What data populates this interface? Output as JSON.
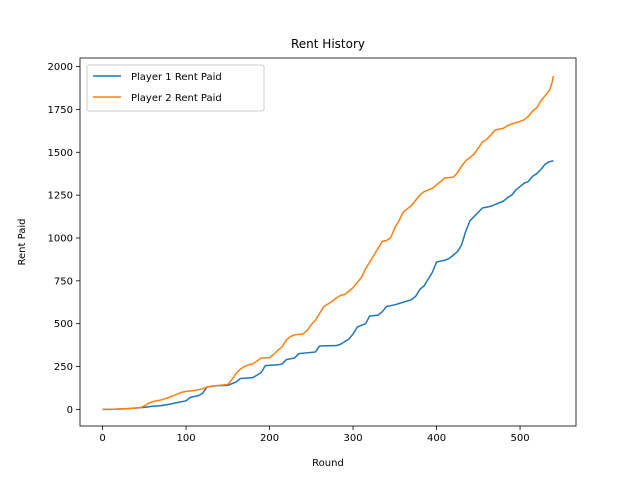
{
  "chart_data": {
    "type": "line",
    "title": "Rent History",
    "xlabel": "Round",
    "ylabel": "Rent Paid",
    "xlim": [
      -27,
      567
    ],
    "ylim": [
      -97,
      2050
    ],
    "xticks": [
      0,
      100,
      200,
      300,
      400,
      500
    ],
    "yticks": [
      0,
      250,
      500,
      750,
      1000,
      1250,
      1500,
      1750,
      2000
    ],
    "grid": false,
    "legend_position": "top-left",
    "series": [
      {
        "name": "Player 1 Rent Paid",
        "color": "#1f77b4",
        "points": [
          [
            0,
            0
          ],
          [
            10,
            0
          ],
          [
            20,
            2
          ],
          [
            30,
            4
          ],
          [
            40,
            8
          ],
          [
            50,
            12
          ],
          [
            60,
            18
          ],
          [
            70,
            22
          ],
          [
            80,
            30
          ],
          [
            90,
            40
          ],
          [
            100,
            50
          ],
          [
            105,
            70
          ],
          [
            115,
            80
          ],
          [
            120,
            95
          ],
          [
            125,
            130
          ],
          [
            135,
            138
          ],
          [
            150,
            140
          ],
          [
            160,
            160
          ],
          [
            165,
            180
          ],
          [
            180,
            185
          ],
          [
            190,
            215
          ],
          [
            195,
            255
          ],
          [
            210,
            260
          ],
          [
            215,
            265
          ],
          [
            220,
            290
          ],
          [
            230,
            300
          ],
          [
            235,
            325
          ],
          [
            245,
            330
          ],
          [
            255,
            335
          ],
          [
            260,
            370
          ],
          [
            275,
            372
          ],
          [
            280,
            372
          ],
          [
            285,
            380
          ],
          [
            290,
            395
          ],
          [
            295,
            410
          ],
          [
            300,
            440
          ],
          [
            305,
            480
          ],
          [
            315,
            500
          ],
          [
            320,
            545
          ],
          [
            330,
            550
          ],
          [
            335,
            570
          ],
          [
            340,
            600
          ],
          [
            350,
            610
          ],
          [
            360,
            625
          ],
          [
            370,
            640
          ],
          [
            375,
            660
          ],
          [
            380,
            700
          ],
          [
            385,
            720
          ],
          [
            390,
            760
          ],
          [
            395,
            800
          ],
          [
            400,
            860
          ],
          [
            410,
            870
          ],
          [
            415,
            880
          ],
          [
            420,
            900
          ],
          [
            425,
            920
          ],
          [
            430,
            960
          ],
          [
            435,
            1040
          ],
          [
            440,
            1100
          ],
          [
            450,
            1150
          ],
          [
            455,
            1175
          ],
          [
            465,
            1185
          ],
          [
            470,
            1195
          ],
          [
            480,
            1215
          ],
          [
            485,
            1235
          ],
          [
            490,
            1250
          ],
          [
            495,
            1280
          ],
          [
            500,
            1300
          ],
          [
            505,
            1320
          ],
          [
            510,
            1330
          ],
          [
            515,
            1360
          ],
          [
            520,
            1375
          ],
          [
            525,
            1400
          ],
          [
            530,
            1430
          ],
          [
            535,
            1445
          ],
          [
            540,
            1450
          ]
        ]
      },
      {
        "name": "Player 2 Rent Paid",
        "color": "#ff7f0e",
        "points": [
          [
            0,
            0
          ],
          [
            10,
            0
          ],
          [
            20,
            2
          ],
          [
            30,
            5
          ],
          [
            40,
            8
          ],
          [
            45,
            10
          ],
          [
            50,
            20
          ],
          [
            55,
            35
          ],
          [
            60,
            45
          ],
          [
            70,
            55
          ],
          [
            80,
            70
          ],
          [
            90,
            90
          ],
          [
            95,
            100
          ],
          [
            100,
            105
          ],
          [
            110,
            110
          ],
          [
            120,
            120
          ],
          [
            125,
            130
          ],
          [
            130,
            135
          ],
          [
            140,
            140
          ],
          [
            150,
            145
          ],
          [
            155,
            175
          ],
          [
            160,
            210
          ],
          [
            165,
            235
          ],
          [
            170,
            250
          ],
          [
            175,
            260
          ],
          [
            180,
            265
          ],
          [
            190,
            300
          ],
          [
            200,
            302
          ],
          [
            205,
            320
          ],
          [
            210,
            345
          ],
          [
            215,
            365
          ],
          [
            220,
            405
          ],
          [
            225,
            425
          ],
          [
            230,
            435
          ],
          [
            240,
            440
          ],
          [
            245,
            460
          ],
          [
            250,
            495
          ],
          [
            255,
            520
          ],
          [
            260,
            560
          ],
          [
            265,
            600
          ],
          [
            270,
            615
          ],
          [
            275,
            630
          ],
          [
            280,
            650
          ],
          [
            285,
            665
          ],
          [
            290,
            670
          ],
          [
            295,
            690
          ],
          [
            300,
            710
          ],
          [
            305,
            740
          ],
          [
            310,
            770
          ],
          [
            315,
            820
          ],
          [
            320,
            860
          ],
          [
            325,
            900
          ],
          [
            330,
            940
          ],
          [
            335,
            980
          ],
          [
            340,
            985
          ],
          [
            345,
            1000
          ],
          [
            350,
            1060
          ],
          [
            355,
            1100
          ],
          [
            360,
            1150
          ],
          [
            365,
            1170
          ],
          [
            370,
            1190
          ],
          [
            375,
            1220
          ],
          [
            380,
            1250
          ],
          [
            385,
            1270
          ],
          [
            390,
            1280
          ],
          [
            395,
            1290
          ],
          [
            400,
            1310
          ],
          [
            405,
            1330
          ],
          [
            410,
            1350
          ],
          [
            420,
            1355
          ],
          [
            425,
            1380
          ],
          [
            430,
            1420
          ],
          [
            435,
            1450
          ],
          [
            440,
            1470
          ],
          [
            445,
            1490
          ],
          [
            450,
            1525
          ],
          [
            455,
            1560
          ],
          [
            460,
            1575
          ],
          [
            465,
            1600
          ],
          [
            470,
            1630
          ],
          [
            480,
            1640
          ],
          [
            485,
            1655
          ],
          [
            490,
            1665
          ],
          [
            500,
            1680
          ],
          [
            505,
            1690
          ],
          [
            510,
            1710
          ],
          [
            515,
            1740
          ],
          [
            520,
            1760
          ],
          [
            525,
            1800
          ],
          [
            530,
            1830
          ],
          [
            535,
            1860
          ],
          [
            538,
            1900
          ],
          [
            540,
            1945
          ]
        ]
      }
    ]
  }
}
